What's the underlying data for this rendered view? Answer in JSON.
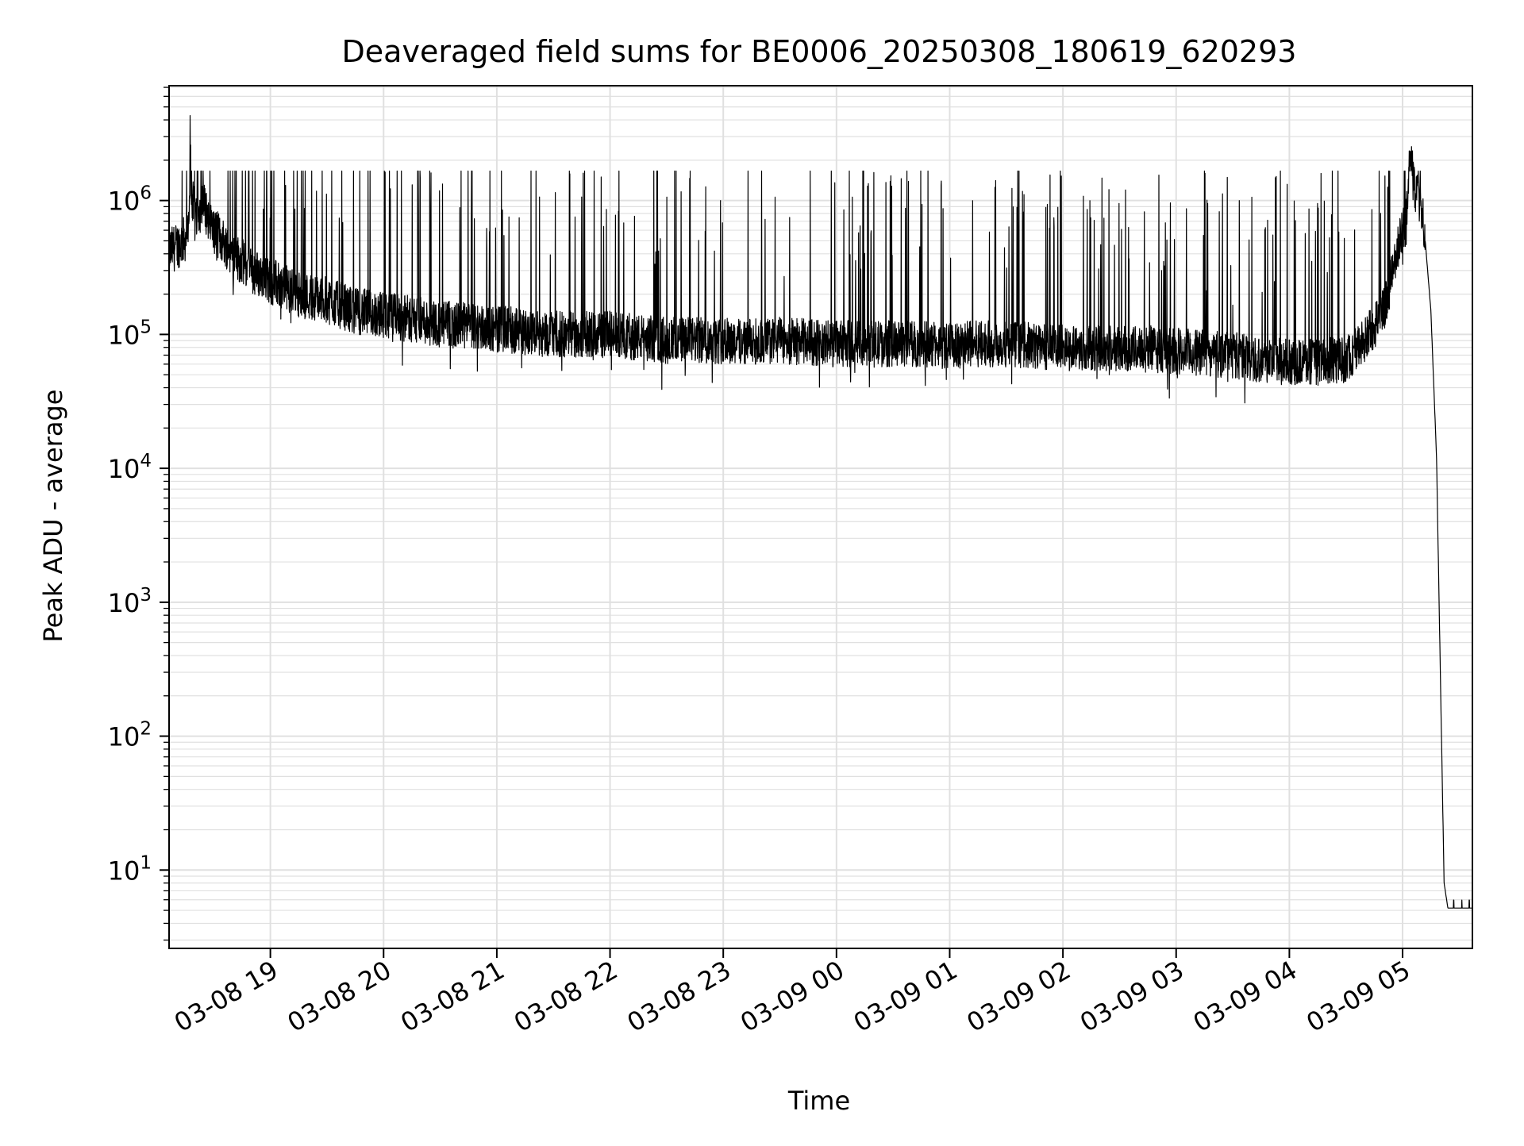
{
  "chart_data": {
    "type": "line",
    "title": "Deaveraged field sums for BE0006_20250308_180619_620293",
    "xlabel": "Time",
    "ylabel": "Peak ADU - average",
    "yscale": "log",
    "ylim": [
      2.6,
      7200000
    ],
    "xlim": [
      "2025-03-08T18:06:19",
      "2025-03-09T05:37:00"
    ],
    "grid": true,
    "series_color": "#000000",
    "grid_color": "#e0e0e0",
    "x_ticks": [
      {
        "t": "2025-03-08T19:00:00",
        "label": "03-08 19"
      },
      {
        "t": "2025-03-08T20:00:00",
        "label": "03-08 20"
      },
      {
        "t": "2025-03-08T21:00:00",
        "label": "03-08 21"
      },
      {
        "t": "2025-03-08T22:00:00",
        "label": "03-08 22"
      },
      {
        "t": "2025-03-08T23:00:00",
        "label": "03-08 23"
      },
      {
        "t": "2025-03-09T00:00:00",
        "label": "03-09 00"
      },
      {
        "t": "2025-03-09T01:00:00",
        "label": "03-09 01"
      },
      {
        "t": "2025-03-09T02:00:00",
        "label": "03-09 02"
      },
      {
        "t": "2025-03-09T03:00:00",
        "label": "03-09 03"
      },
      {
        "t": "2025-03-09T04:00:00",
        "label": "03-09 04"
      },
      {
        "t": "2025-03-09T05:00:00",
        "label": "03-09 05"
      }
    ],
    "y_ticks": [
      {
        "v": 10,
        "base": "10",
        "exp": "1"
      },
      {
        "v": 100,
        "base": "10",
        "exp": "2"
      },
      {
        "v": 1000,
        "base": "10",
        "exp": "3"
      },
      {
        "v": 10000,
        "base": "10",
        "exp": "4"
      },
      {
        "v": 100000,
        "base": "10",
        "exp": "5"
      },
      {
        "v": 1000000,
        "base": "10",
        "exp": "6"
      }
    ],
    "series": [
      {
        "x": [
          "2025-03-08T18:06:19",
          "2025-03-08T18:10:00",
          "2025-03-08T18:15:00",
          "2025-03-08T18:17:00",
          "2025-03-08T18:17:30",
          "2025-03-08T18:18:00",
          "2025-03-08T18:20:00",
          "2025-03-08T18:25:00",
          "2025-03-08T18:30:00",
          "2025-03-08T18:35:00",
          "2025-03-08T18:40:00",
          "2025-03-08T18:45:00",
          "2025-03-08T18:50:00",
          "2025-03-08T19:00:00",
          "2025-03-08T19:15:00",
          "2025-03-08T19:30:00",
          "2025-03-08T19:45:00",
          "2025-03-08T20:00:00",
          "2025-03-08T20:15:00",
          "2025-03-08T20:30:00",
          "2025-03-08T20:45:00",
          "2025-03-08T21:00:00",
          "2025-03-08T21:15:00",
          "2025-03-08T21:30:00",
          "2025-03-08T21:45:00",
          "2025-03-08T22:00:00",
          "2025-03-08T22:15:00",
          "2025-03-08T22:30:00",
          "2025-03-08T22:45:00",
          "2025-03-08T23:00:00",
          "2025-03-08T23:15:00",
          "2025-03-08T23:30:00",
          "2025-03-08T23:45:00",
          "2025-03-09T00:00:00",
          "2025-03-09T00:15:00",
          "2025-03-09T00:30:00",
          "2025-03-09T00:45:00",
          "2025-03-09T01:00:00",
          "2025-03-09T01:15:00",
          "2025-03-09T01:30:00",
          "2025-03-09T01:45:00",
          "2025-03-09T02:00:00",
          "2025-03-09T02:15:00",
          "2025-03-09T02:30:00",
          "2025-03-09T02:45:00",
          "2025-03-09T03:00:00",
          "2025-03-09T03:15:00",
          "2025-03-09T03:30:00",
          "2025-03-09T03:45:00",
          "2025-03-09T04:00:00",
          "2025-03-09T04:15:00",
          "2025-03-09T04:30:00",
          "2025-03-09T04:40:00",
          "2025-03-09T04:50:00",
          "2025-03-09T05:00:00",
          "2025-03-09T05:02:00",
          "2025-03-09T05:04:00",
          "2025-03-09T05:06:00",
          "2025-03-09T05:08:00",
          "2025-03-09T05:10:00",
          "2025-03-09T05:12:00",
          "2025-03-09T05:15:00",
          "2025-03-09T05:18:00",
          "2025-03-09T05:20:00",
          "2025-03-09T05:22:00",
          "2025-03-09T05:24:00",
          "2025-03-09T05:25:00",
          "2025-03-09T05:37:00"
        ],
        "y": [
          420000,
          450000,
          520000,
          600000,
          3800000,
          1100000,
          800000,
          900000,
          600000,
          500000,
          400000,
          350000,
          300000,
          250000,
          200000,
          180000,
          150000,
          140000,
          130000,
          120000,
          115000,
          110000,
          105000,
          100000,
          100000,
          100000,
          95000,
          90000,
          90000,
          90000,
          88000,
          90000,
          88000,
          85000,
          85000,
          85000,
          85000,
          82000,
          85000,
          85000,
          82000,
          80000,
          80000,
          78000,
          78000,
          75000,
          72000,
          70000,
          65000,
          62000,
          62000,
          65000,
          90000,
          150000,
          600000,
          700000,
          2800000,
          1200000,
          1100000,
          900000,
          500000,
          150000,
          12000,
          300,
          8,
          5.2,
          5.2,
          5.2
        ]
      }
    ]
  }
}
